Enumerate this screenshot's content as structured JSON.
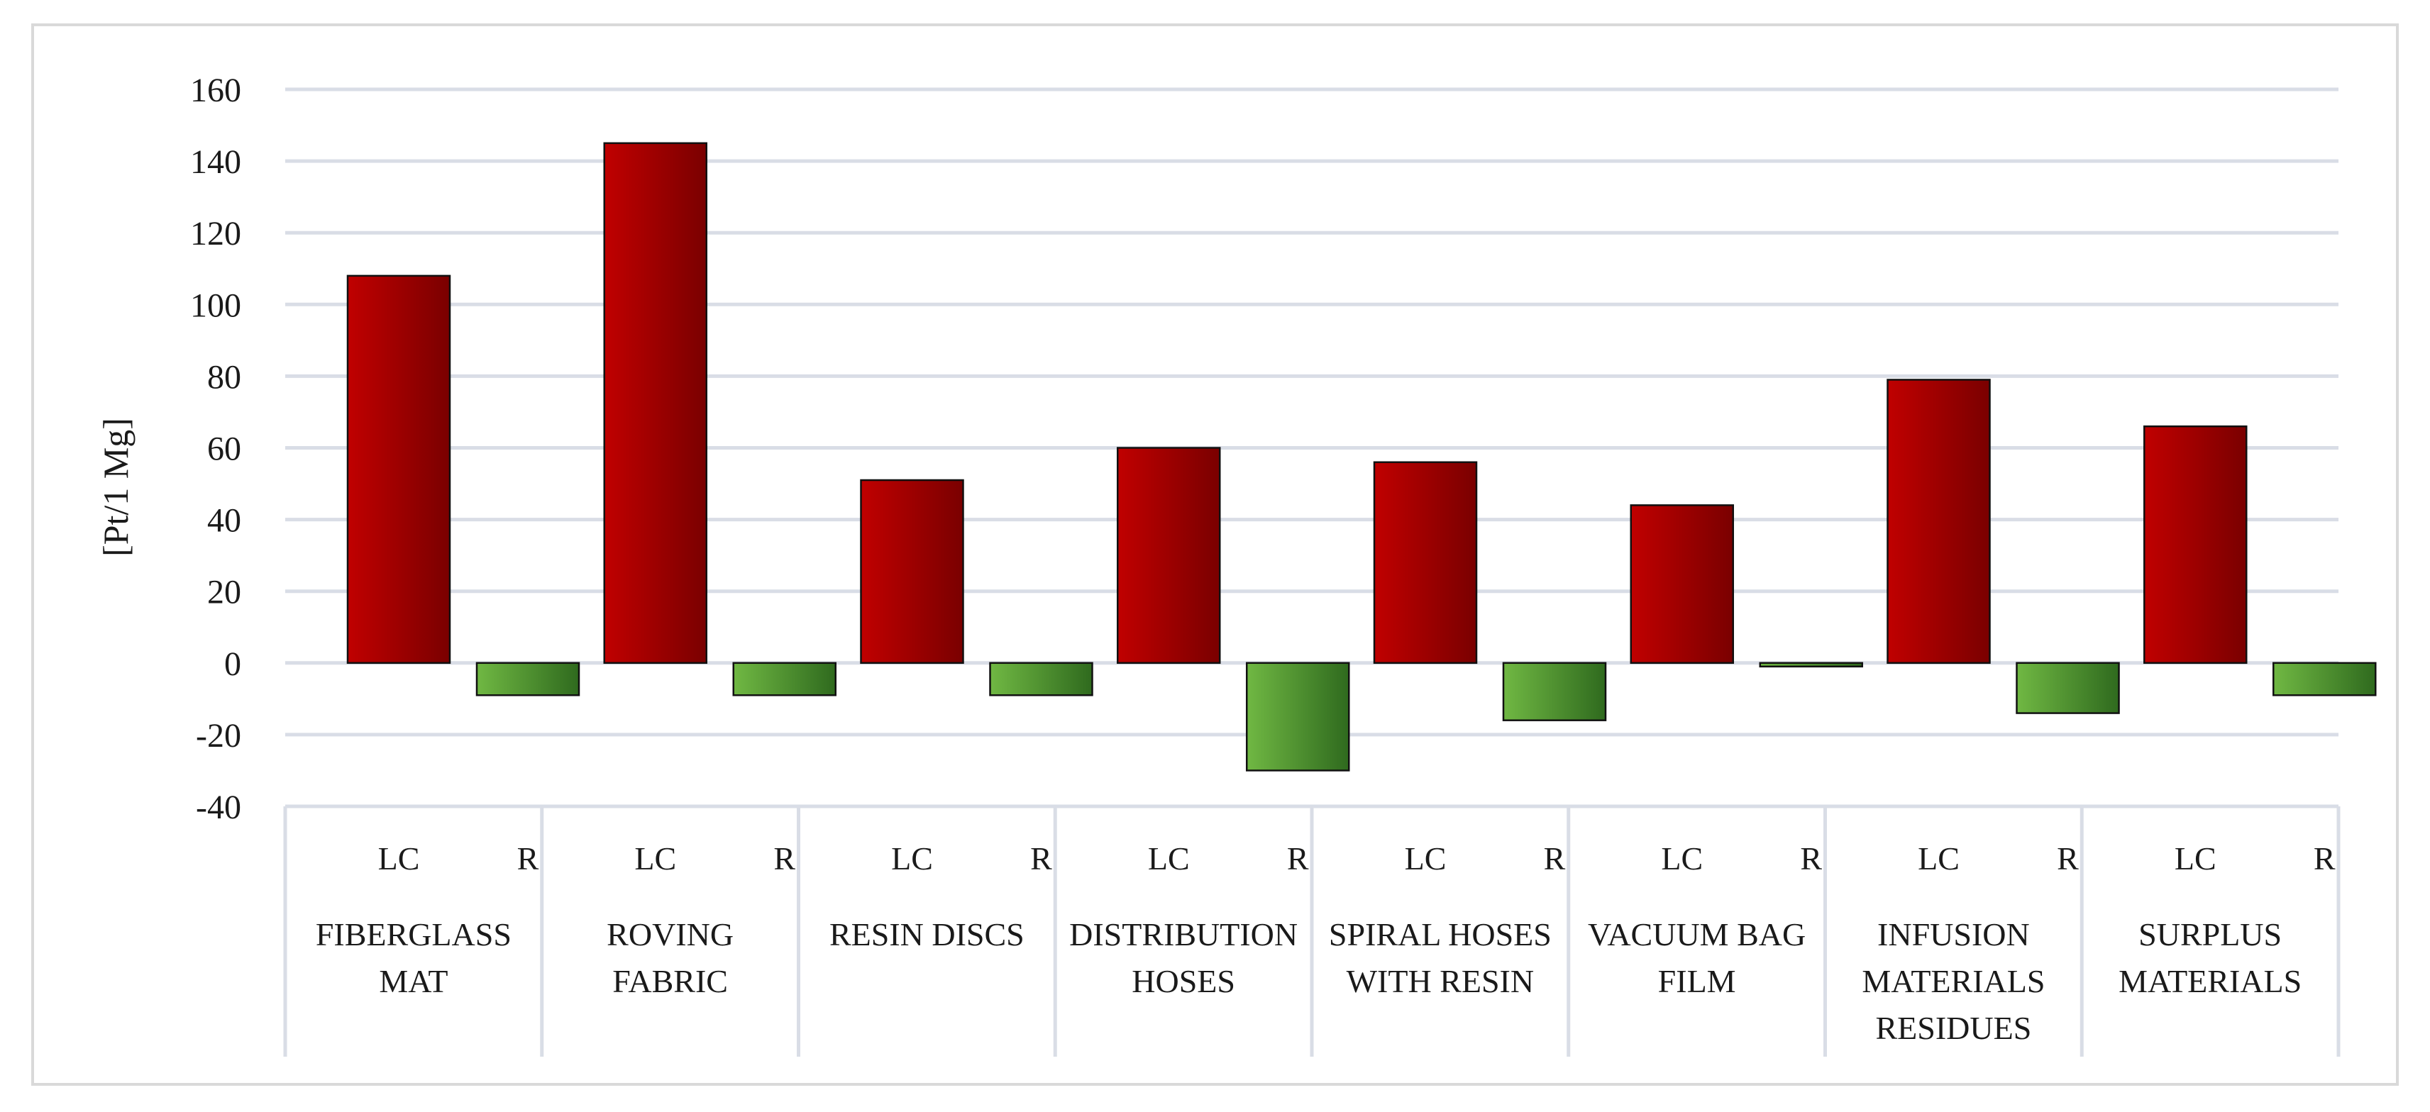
{
  "chart_data": {
    "type": "bar",
    "ylabel": "[Pt/1 Mg]",
    "ylim": [
      -40,
      160
    ],
    "y_ticks": [
      -40,
      -20,
      0,
      20,
      40,
      60,
      80,
      100,
      120,
      140,
      160
    ],
    "grid": true,
    "series_labels": [
      "LC",
      "R"
    ],
    "groups": [
      {
        "label_lines": [
          "FIBERGLASS",
          "MAT"
        ],
        "values": [
          108,
          -9
        ]
      },
      {
        "label_lines": [
          "ROVING",
          "FABRIC"
        ],
        "values": [
          145,
          -9
        ]
      },
      {
        "label_lines": [
          "RESIN DISCS"
        ],
        "values": [
          51,
          -9
        ]
      },
      {
        "label_lines": [
          "DISTRIBUTION",
          "HOSES"
        ],
        "values": [
          60,
          -30
        ]
      },
      {
        "label_lines": [
          "SPIRAL HOSES",
          "WITH RESIN"
        ],
        "values": [
          56,
          -16
        ]
      },
      {
        "label_lines": [
          "VACUUM BAG",
          "FILM"
        ],
        "values": [
          44,
          -1
        ]
      },
      {
        "label_lines": [
          "INFUSION",
          "MATERIALS",
          "RESIDUES"
        ],
        "values": [
          79,
          -14
        ]
      },
      {
        "label_lines": [
          "SURPLUS",
          "MATERIALS"
        ],
        "values": [
          66,
          -9
        ]
      }
    ],
    "colors": {
      "LC": [
        "#c00000",
        "#7a0000"
      ],
      "R": [
        "#70b843",
        "#2f6a1e"
      ]
    }
  }
}
